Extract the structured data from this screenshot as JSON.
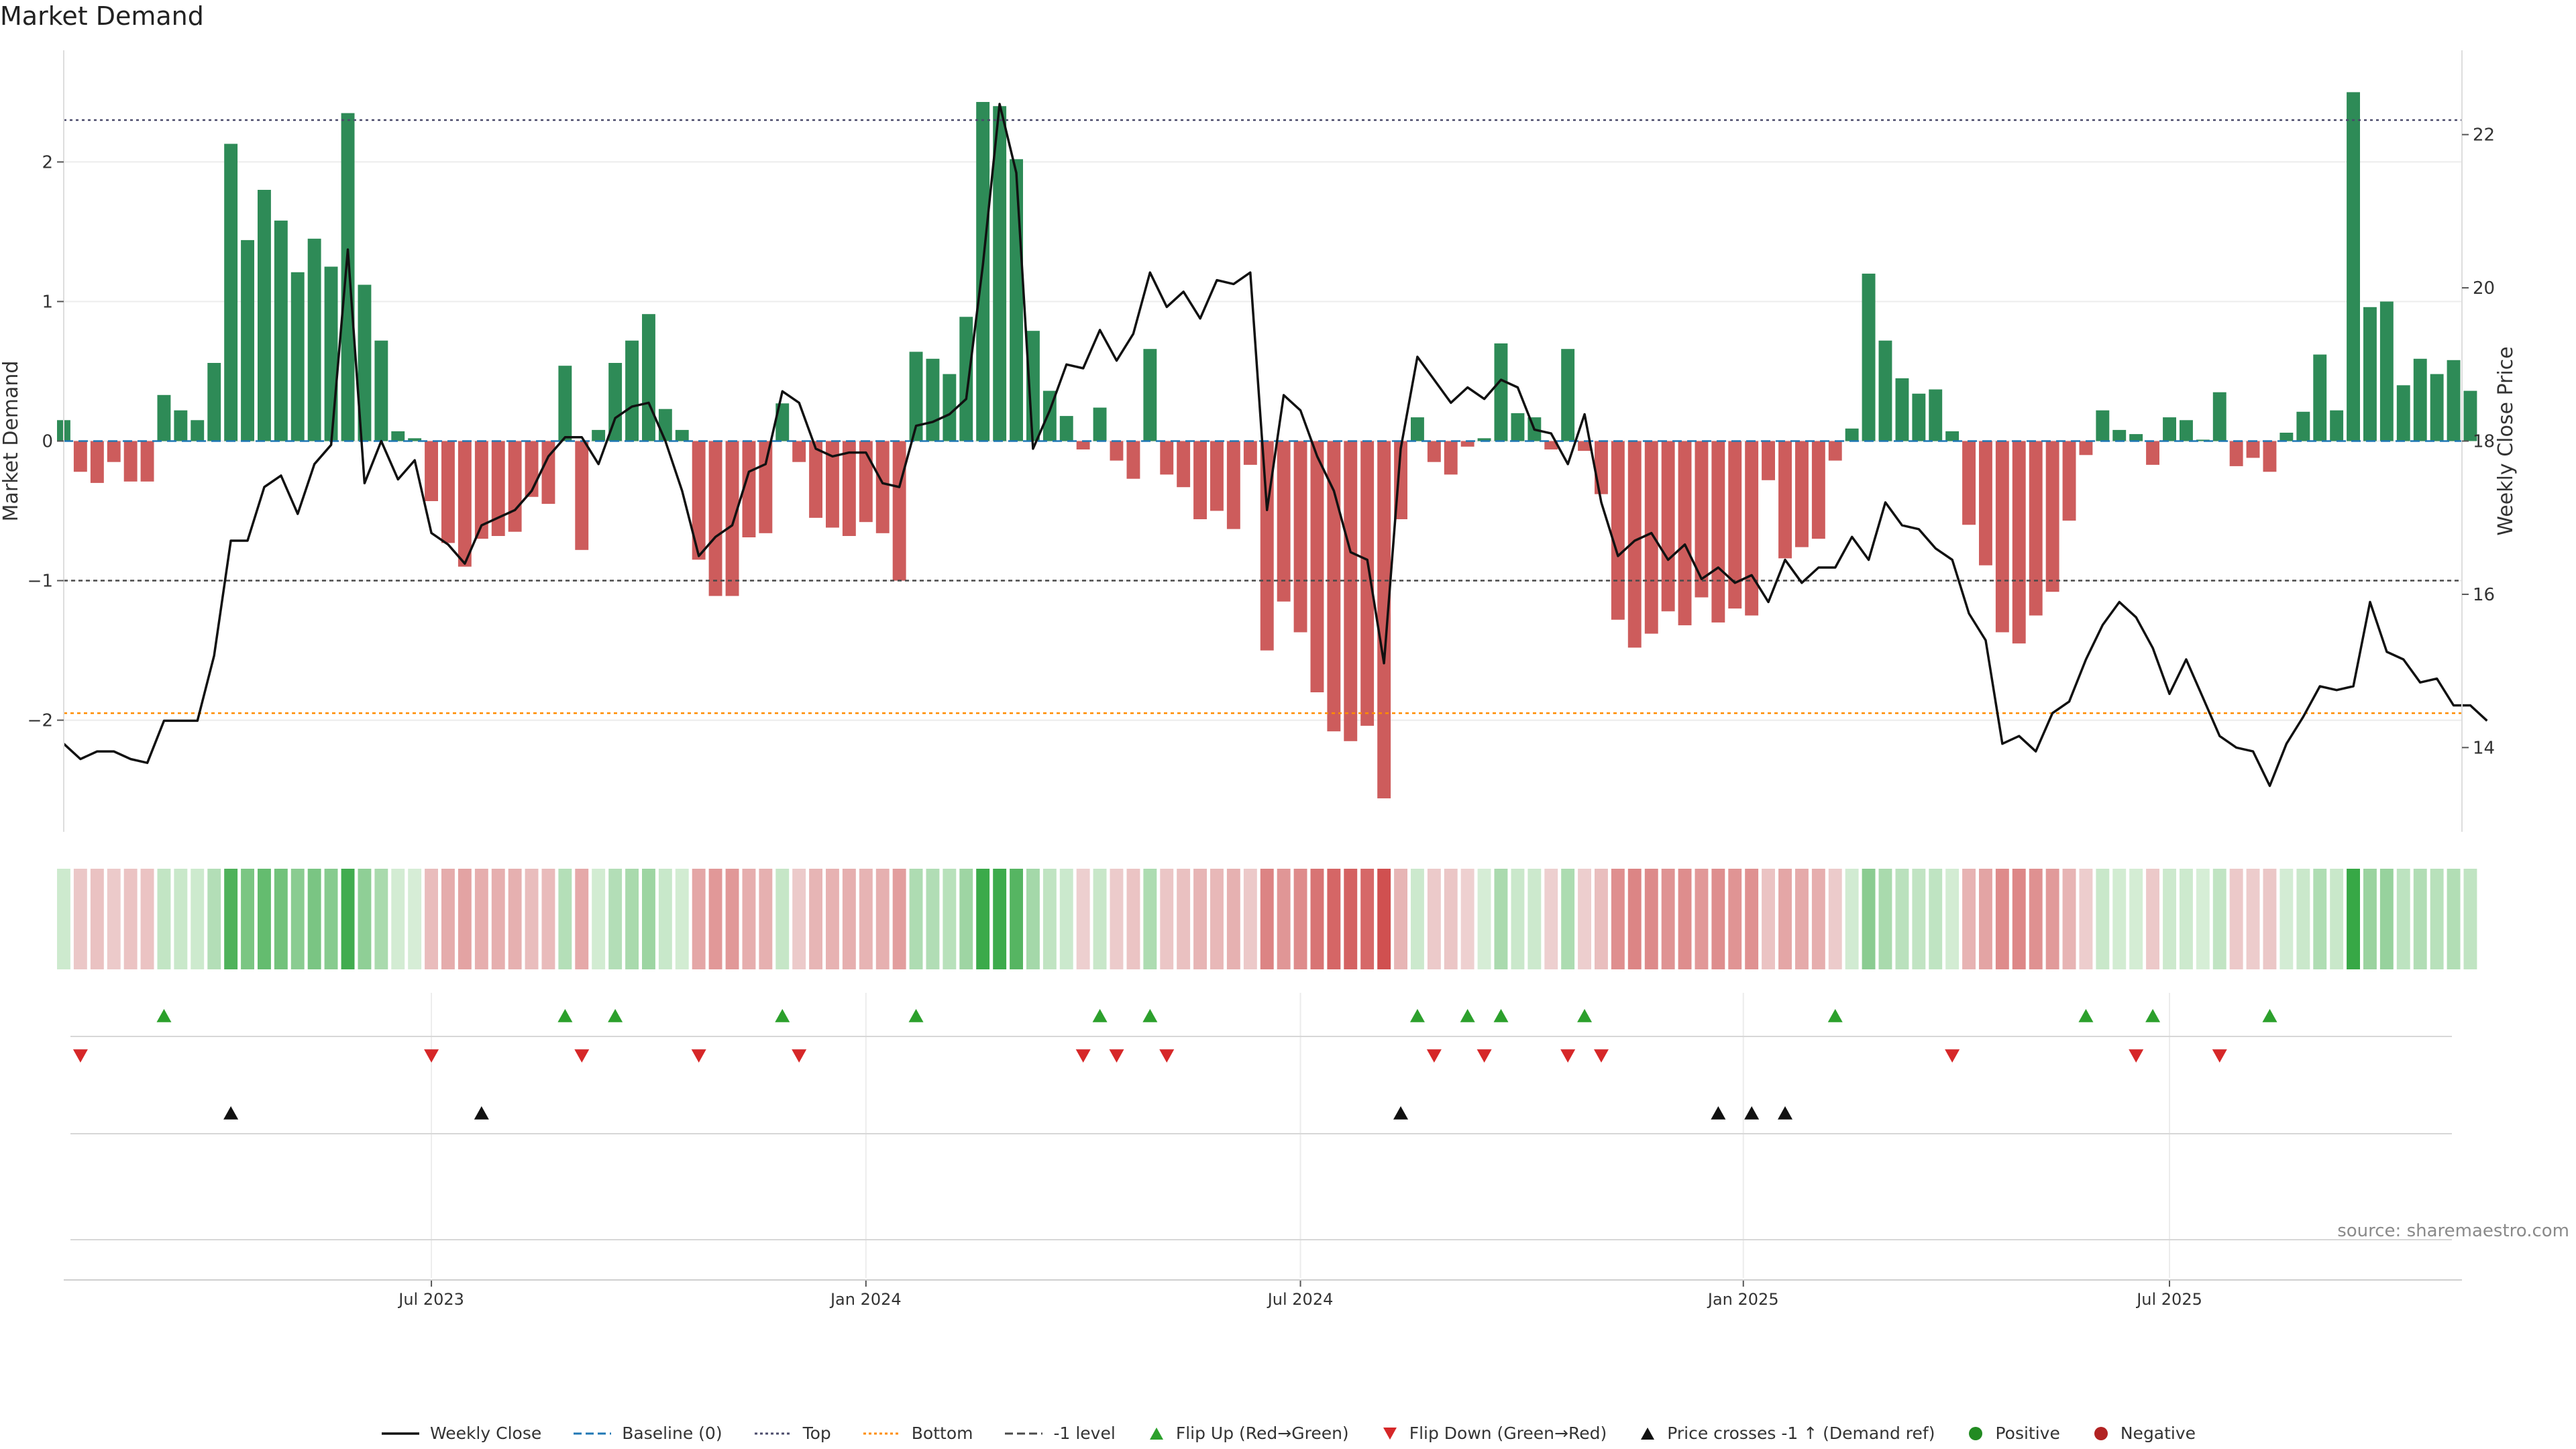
{
  "page": {
    "title": "Market Demand",
    "source": "source: sharemaestro.com"
  },
  "colors": {
    "positive_bar": "#2e8b57",
    "negative_bar": "#cd5c5c",
    "price_line": "#111111",
    "top_line": "#4a4a6a",
    "bottom_line": "#ff8c00",
    "minus1_line": "#4a4a4a",
    "flip_up": "#2ca02c",
    "flip_down": "#d62728",
    "price_cross": "#111111",
    "positive_dot": "#228b22",
    "negative_dot": "#b22222",
    "grid": "#ececec"
  },
  "chart_data": {
    "type": "bar",
    "title": "Market Demand",
    "ylabel": "Market Demand",
    "y2label": "Weekly Close Price",
    "ylim": [
      -2.8,
      2.8
    ],
    "y2lim": [
      12.9,
      23.1
    ],
    "yticks": [
      -2,
      -1,
      0,
      1,
      2
    ],
    "y2ticks": [
      14,
      16,
      18,
      20,
      22
    ],
    "x_range": [
      0,
      143.5
    ],
    "x_ticks": [
      {
        "label": "Jul 2023",
        "x": 22
      },
      {
        "label": "Jan 2024",
        "x": 48
      },
      {
        "label": "Jul 2024",
        "x": 74
      },
      {
        "label": "Jan 2025",
        "x": 100.5
      },
      {
        "label": "Jul 2025",
        "x": 126
      }
    ],
    "reference_lines": [
      {
        "name": "Top",
        "value": 2.3,
        "style": "dotted"
      },
      {
        "name": "Bottom",
        "value": -1.95,
        "style": "dotted"
      },
      {
        "name": "-1 level",
        "value": -1.0,
        "style": "dashed"
      }
    ],
    "series": [
      {
        "name": "Market Demand",
        "axis": "left",
        "values": [
          0.15,
          -0.22,
          -0.3,
          -0.15,
          -0.29,
          -0.29,
          0.33,
          0.22,
          0.15,
          0.56,
          2.13,
          1.44,
          1.8,
          1.58,
          1.21,
          1.45,
          1.25,
          2.35,
          1.12,
          0.72,
          0.07,
          0.02,
          -0.43,
          -0.73,
          -0.9,
          -0.7,
          -0.68,
          -0.65,
          -0.4,
          -0.45,
          0.54,
          -0.78,
          0.08,
          0.56,
          0.72,
          0.91,
          0.23,
          0.08,
          -0.85,
          -1.11,
          -1.11,
          -0.69,
          -0.66,
          0.27,
          -0.15,
          -0.55,
          -0.62,
          -0.68,
          -0.58,
          -0.66,
          -1.0,
          0.64,
          0.59,
          0.48,
          0.89,
          2.43,
          2.4,
          2.02,
          0.79,
          0.36,
          0.18,
          -0.06,
          0.24,
          -0.14,
          -0.27,
          0.66,
          -0.24,
          -0.33,
          -0.56,
          -0.5,
          -0.63,
          -0.17,
          -1.5,
          -1.15,
          -1.37,
          -1.8,
          -2.08,
          -2.15,
          -2.04,
          -2.56,
          -0.56,
          0.17,
          -0.15,
          -0.24,
          -0.04,
          0.02,
          0.7,
          0.2,
          0.17,
          -0.06,
          0.66,
          -0.07,
          -0.38,
          -1.28,
          -1.48,
          -1.38,
          -1.22,
          -1.32,
          -1.12,
          -1.3,
          -1.2,
          -1.25,
          -0.28,
          -0.84,
          -0.76,
          -0.7,
          -0.14,
          0.09,
          1.2,
          0.72,
          0.45,
          0.34,
          0.37,
          0.07,
          -0.6,
          -0.89,
          -1.37,
          -1.45,
          -1.25,
          -1.08,
          -0.57,
          -0.1,
          0.22,
          0.08,
          0.05,
          -0.17,
          0.17,
          0.15,
          0.01,
          0.35,
          -0.18,
          -0.12,
          -0.22,
          0.06,
          0.21,
          0.62,
          0.22,
          2.5,
          0.96,
          1.0,
          0.4,
          0.59,
          0.48,
          0.58,
          0.36
        ]
      },
      {
        "name": "Weekly Close",
        "axis": "right",
        "values": [
          14.05,
          13.85,
          13.95,
          13.95,
          13.85,
          13.8,
          14.35,
          14.35,
          14.35,
          15.2,
          16.7,
          16.7,
          17.4,
          17.55,
          17.05,
          17.7,
          17.95,
          20.5,
          17.45,
          18.0,
          17.5,
          17.75,
          16.8,
          16.65,
          16.4,
          16.9,
          17.0,
          17.1,
          17.35,
          17.8,
          18.05,
          18.05,
          17.7,
          18.3,
          18.45,
          18.5,
          18.0,
          17.35,
          16.5,
          16.75,
          16.9,
          17.6,
          17.7,
          18.65,
          18.5,
          17.9,
          17.8,
          17.85,
          17.85,
          17.45,
          17.4,
          18.2,
          18.25,
          18.35,
          18.55,
          20.3,
          22.4,
          21.5,
          17.9,
          18.4,
          19.0,
          18.95,
          19.45,
          19.05,
          19.4,
          20.2,
          19.75,
          19.95,
          19.6,
          20.1,
          20.05,
          20.2,
          17.1,
          18.6,
          18.4,
          17.8,
          17.35,
          16.55,
          16.45,
          15.1,
          17.9,
          19.1,
          18.8,
          18.5,
          18.7,
          18.55,
          18.8,
          18.7,
          18.15,
          18.1,
          17.7,
          18.35,
          17.2,
          16.5,
          16.7,
          16.8,
          16.45,
          16.65,
          16.2,
          16.35,
          16.15,
          16.25,
          15.9,
          16.45,
          16.15,
          16.35,
          16.35,
          16.75,
          16.45,
          17.2,
          16.9,
          16.85,
          16.6,
          16.45,
          15.75,
          15.4,
          14.05,
          14.15,
          13.95,
          14.45,
          14.6,
          15.15,
          15.6,
          15.9,
          15.7,
          15.3,
          14.7,
          15.15,
          14.65,
          14.15,
          14.0,
          13.95,
          13.5,
          14.05,
          14.4,
          14.8,
          14.75,
          14.8,
          15.9,
          15.25,
          15.15,
          14.85,
          14.9,
          14.55,
          14.55,
          14.35
        ]
      }
    ],
    "heat_strip": {
      "description": "demand intensity per week (green positive, red negative)"
    },
    "markers": {
      "flip_up": [
        6,
        30,
        33,
        43,
        51,
        62,
        65,
        81,
        84,
        86,
        91,
        106,
        121,
        125,
        132
      ],
      "flip_down": [
        1,
        22,
        31,
        38,
        44,
        61,
        63,
        66,
        82,
        85,
        90,
        92,
        113,
        124,
        129
      ],
      "price_crosses": [
        10,
        25,
        80,
        99,
        101,
        103
      ]
    }
  },
  "legend": {
    "items": [
      {
        "label": "Weekly Close",
        "marker": "solid-line",
        "color": "#111111"
      },
      {
        "label": "Baseline (0)",
        "marker": "dashed-line",
        "color": "#1f77b4"
      },
      {
        "label": "Top",
        "marker": "dotted-line",
        "color": "#4a4a6a"
      },
      {
        "label": "Bottom",
        "marker": "dotted-line",
        "color": "#ff8c00"
      },
      {
        "label": "-1 level",
        "marker": "dashed-line",
        "color": "#4a4a4a"
      },
      {
        "label": "Flip Up (Red→Green)",
        "marker": "triangle-up",
        "color": "#2ca02c"
      },
      {
        "label": "Flip Down (Green→Red)",
        "marker": "triangle-down",
        "color": "#d62728"
      },
      {
        "label": "Price crosses -1 ↑ (Demand ref)",
        "marker": "triangle-up",
        "color": "#111111"
      },
      {
        "label": "Positive",
        "marker": "dot",
        "color": "#228b22"
      },
      {
        "label": "Negative",
        "marker": "dot",
        "color": "#b22222"
      }
    ]
  }
}
